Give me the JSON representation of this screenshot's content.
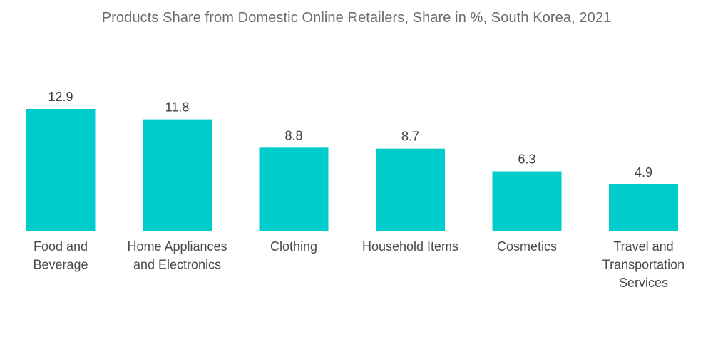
{
  "chart_data": {
    "type": "bar",
    "title": "Products Share from Domestic Online Retailers, Share in %, South Korea, 2021",
    "xlabel": "",
    "ylabel": "",
    "categories": [
      "Food and Beverage",
      "Home Appliances and Electronics",
      "Clothing",
      "Household Items",
      "Cosmetics",
      "Travel and Transportation Services"
    ],
    "category_lines": [
      [
        "Food and",
        "Beverage"
      ],
      [
        "Home Appliances",
        "and Electronics"
      ],
      [
        "Clothing"
      ],
      [
        "Household Items"
      ],
      [
        "Cosmetics"
      ],
      [
        "Travel and",
        "Transportation",
        "Services"
      ]
    ],
    "values": [
      12.9,
      11.8,
      8.8,
      8.7,
      6.3,
      4.9
    ],
    "value_labels": [
      "12.9",
      "11.8",
      "8.8",
      "8.7",
      "6.3",
      "4.9"
    ],
    "ylim": [
      0,
      12.9
    ],
    "grid": false,
    "legend": "none",
    "bar_color": "#00CCCC"
  }
}
